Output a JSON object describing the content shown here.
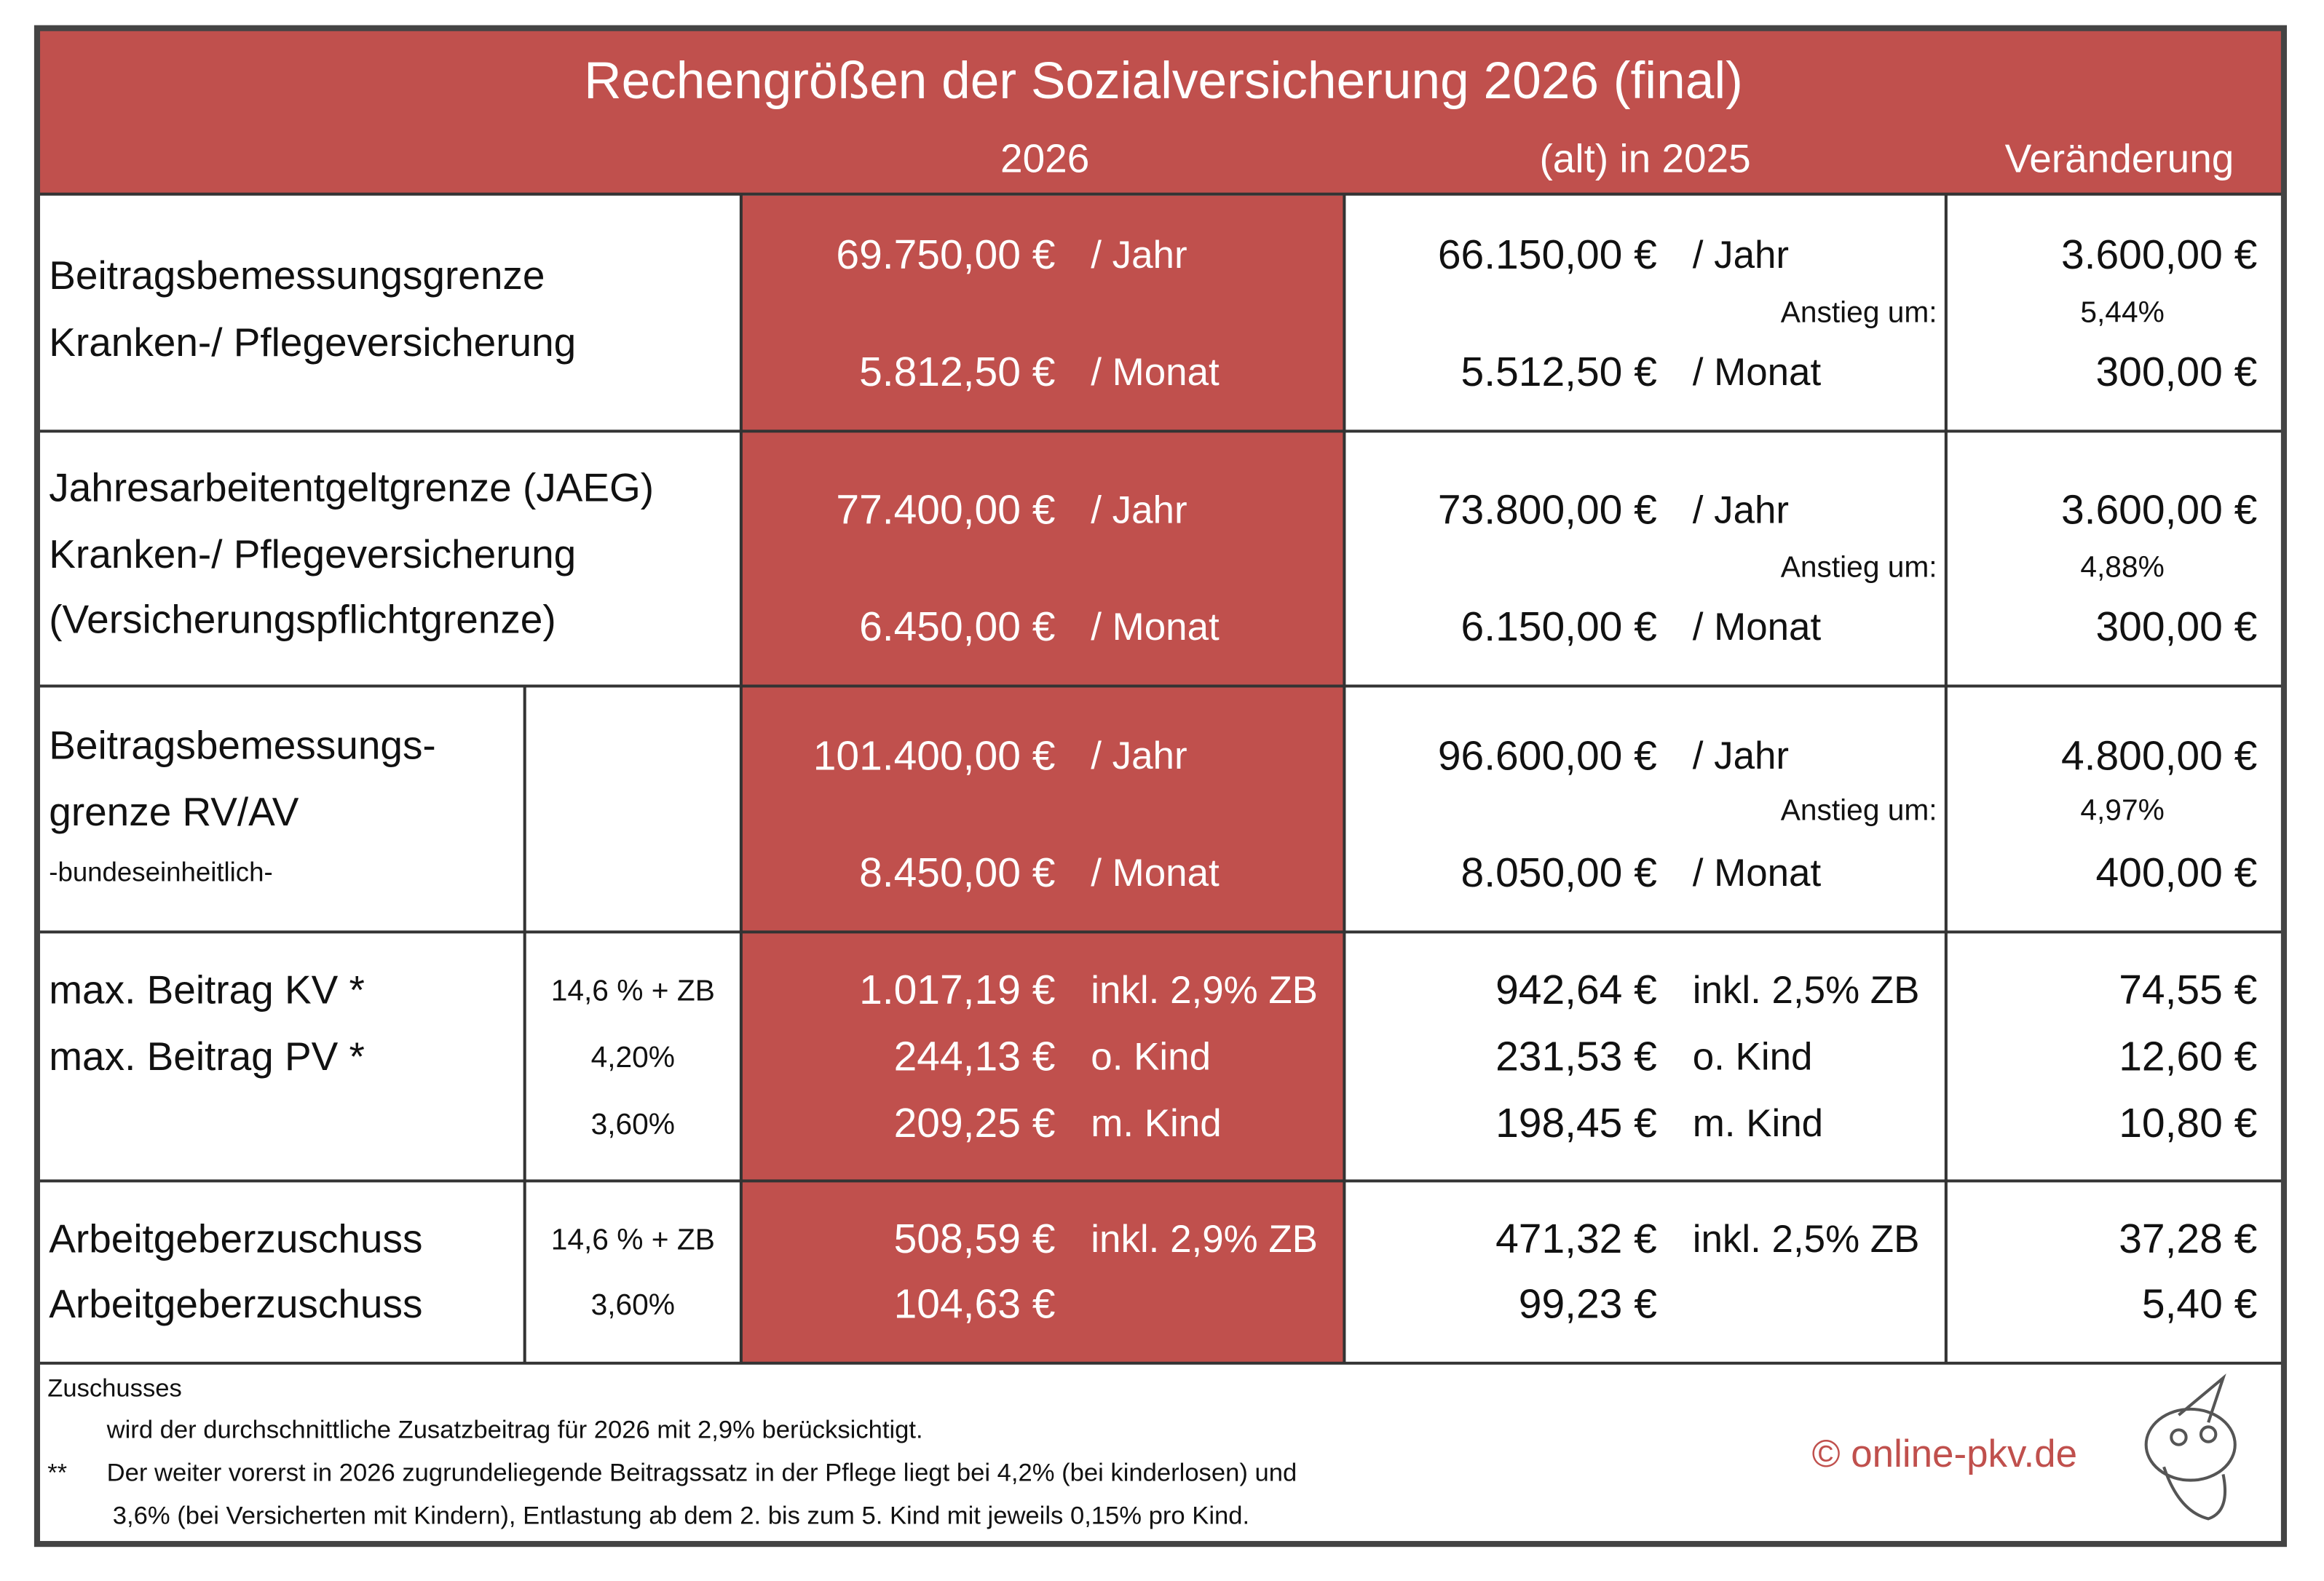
{
  "header": {
    "title": "Rechengrößen der Sozialversicherung 2026 (final)",
    "columns": [
      "2026",
      "(alt) in 2025",
      "Veränderung"
    ]
  },
  "rows": [
    {
      "label_lines": [
        "Beitragsbemessungsgrenze",
        "Kranken-/ Pflegeversicherung"
      ],
      "lines": [
        {
          "value_2026": "69.750,00 €",
          "unit_2026": "/ Jahr",
          "value_2025": "66.150,00 €",
          "unit_2025": "/ Jahr",
          "change": "3.600,00 €"
        },
        {
          "value_2026": "5.812,50 €",
          "unit_2026": "/ Monat",
          "value_2025": "5.512,50 €",
          "unit_2025": "/ Monat",
          "change": "300,00 €"
        }
      ],
      "increase": {
        "label": "Anstieg um:",
        "value": "5,44%"
      }
    },
    {
      "label_lines": [
        "Jahresarbeitentgeltgrenze (JAEG)",
        "Kranken-/ Pflegeversicherung",
        "(Versicherungspflichtgrenze)"
      ],
      "lines": [
        {
          "value_2026": "77.400,00 €",
          "unit_2026": "/ Jahr",
          "value_2025": "73.800,00 €",
          "unit_2025": "/ Jahr",
          "change": "3.600,00 €"
        },
        {
          "value_2026": "6.450,00 €",
          "unit_2026": "/ Monat",
          "value_2025": "6.150,00 €",
          "unit_2025": "/ Monat",
          "change": "300,00 €"
        }
      ],
      "increase": {
        "label": "Anstieg um:",
        "value": "4,88%"
      }
    },
    {
      "label_lines": [
        "Beitragsbemessungs-",
        "grenze RV/AV",
        "-bundeseinheitlich-"
      ],
      "lines": [
        {
          "value_2026": "101.400,00 €",
          "unit_2026": "/ Jahr",
          "value_2025": "96.600,00 €",
          "unit_2025": "/ Jahr",
          "change": "4.800,00 €"
        },
        {
          "value_2026": "8.450,00 €",
          "unit_2026": "/ Monat",
          "value_2025": "8.050,00 €",
          "unit_2025": "/ Monat",
          "change": "400,00 €"
        }
      ],
      "increase": {
        "label": "Anstieg um:",
        "value": "4,97%"
      }
    },
    {
      "label_lines": [
        "max. Beitrag KV *",
        "max. Beitrag PV *"
      ],
      "rate_lines": [
        "14,6 % + ZB",
        "4,20%",
        "3,60%"
      ],
      "lines": [
        {
          "value_2026": "1.017,19 €",
          "unit_2026": "inkl. 2,9% ZB",
          "value_2025": "942,64 €",
          "unit_2025": "inkl. 2,5% ZB",
          "change": "74,55 €"
        },
        {
          "value_2026": "244,13 €",
          "unit_2026": "o. Kind",
          "value_2025": "231,53 €",
          "unit_2025": "o. Kind",
          "change": "12,60 €"
        },
        {
          "value_2026": "209,25 €",
          "unit_2026": "m. Kind",
          "value_2025": "198,45 €",
          "unit_2025": "m. Kind",
          "change": "10,80 €"
        }
      ]
    },
    {
      "label_lines": [
        "Arbeitgeberzuschuss",
        "Arbeitgeberzuschuss"
      ],
      "rate_lines": [
        "14,6 % + ZB",
        "3,60%"
      ],
      "lines": [
        {
          "value_2026": "508,59 €",
          "unit_2026": "inkl. 2,9% ZB",
          "value_2025": "471,32 €",
          "unit_2025": "inkl. 2,5% ZB",
          "change": "37,28 €"
        },
        {
          "value_2026": "104,63 €",
          "value_2025": "99,23 €",
          "change": "5,40 €"
        }
      ]
    }
  ],
  "footer": {
    "notes": [
      "Zuschusses",
      "wird der durchschnittliche Zusatzbeitrag für 2026 mit 2,9% berücksichtigt.",
      "**",
      "Der weiter vorerst in 2026 zugrundeliegende Beitragssatz in der Pflege liegt bei 4,2% (bei kinderlosen) und",
      "3,6% (bei Versicherten mit Kindern), Entlastung ab dem 2. bis zum 5. Kind mit jeweils 0,15% pro Kind."
    ],
    "copyright": "© online-pkv.de"
  }
}
